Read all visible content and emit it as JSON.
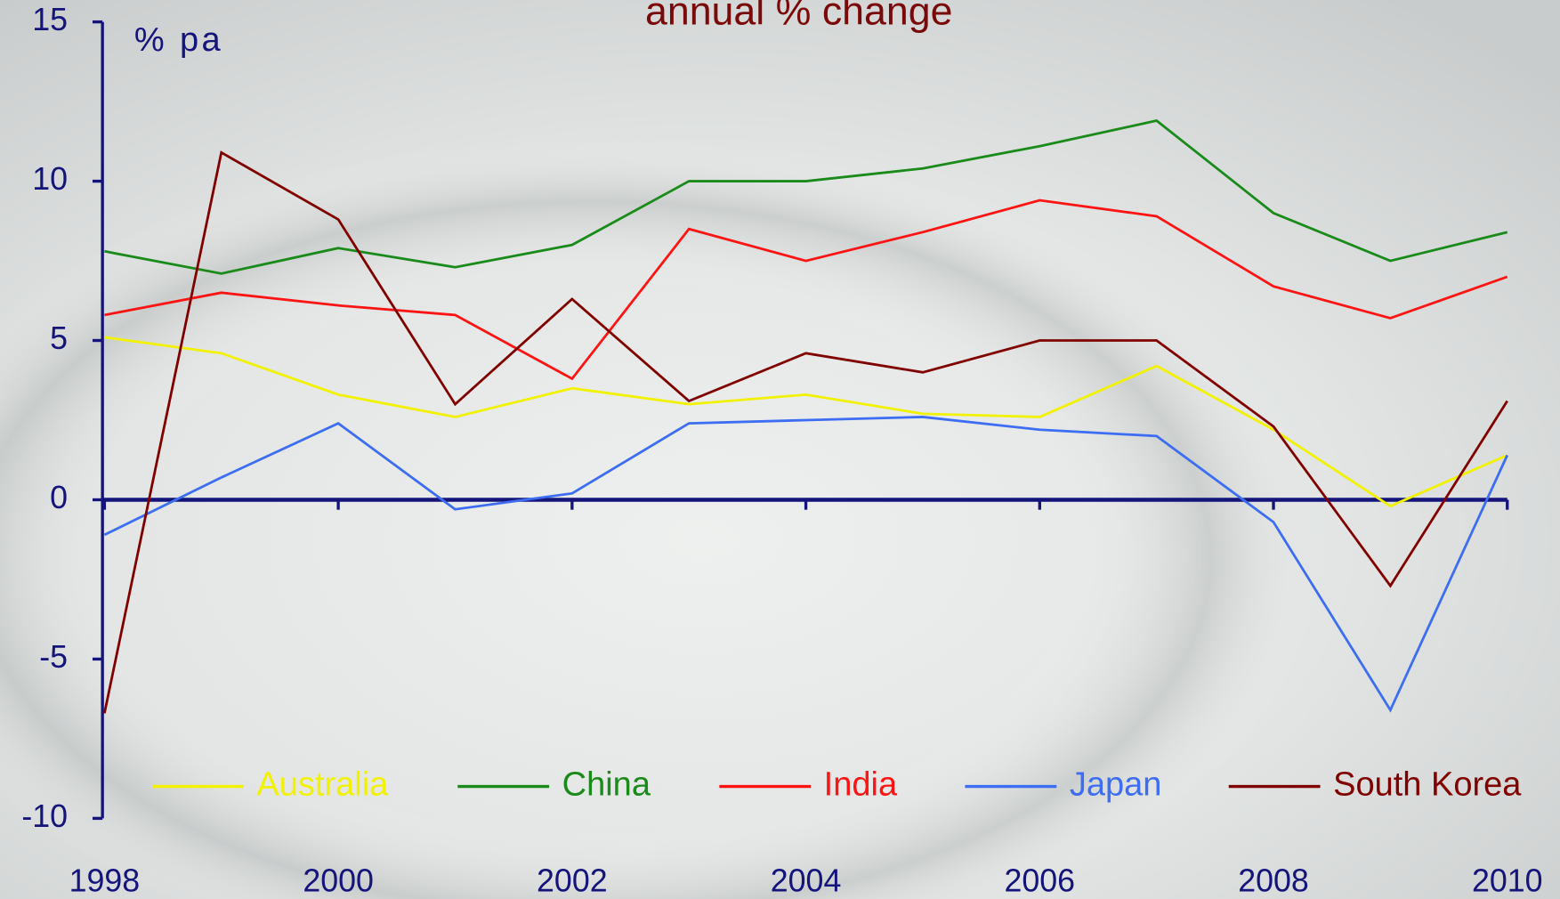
{
  "chart_data": {
    "type": "line",
    "title": "annual % change",
    "y_axis_label": "% pa",
    "x": [
      1998,
      1999,
      2000,
      2001,
      2002,
      2003,
      2004,
      2005,
      2006,
      2007,
      2008,
      2009,
      2010
    ],
    "series": [
      {
        "name": "Australia",
        "color": "#f2f200",
        "values": [
          5.1,
          4.6,
          3.3,
          2.6,
          3.5,
          3.0,
          3.3,
          2.7,
          2.6,
          4.2,
          2.2,
          -0.2,
          1.4
        ]
      },
      {
        "name": "China",
        "color": "#1a8a1a",
        "values": [
          7.8,
          7.1,
          7.9,
          7.3,
          8.0,
          10.0,
          10.0,
          10.4,
          11.1,
          11.9,
          9.0,
          7.5,
          8.4
        ]
      },
      {
        "name": "India",
        "color": "#ff1414",
        "values": [
          5.8,
          6.5,
          6.1,
          5.8,
          3.8,
          8.5,
          7.5,
          8.4,
          9.4,
          8.9,
          6.7,
          5.7,
          7.0
        ]
      },
      {
        "name": "Japan",
        "color": "#3d6df2",
        "values": [
          -1.1,
          0.7,
          2.4,
          -0.3,
          0.2,
          2.4,
          2.5,
          2.6,
          2.2,
          2.0,
          -0.7,
          -6.6,
          1.4
        ]
      },
      {
        "name": "South Korea",
        "color": "#800000",
        "values": [
          -6.7,
          10.9,
          8.8,
          3.0,
          6.3,
          3.1,
          4.6,
          4.0,
          5.0,
          5.0,
          2.3,
          -2.7,
          3.1
        ]
      }
    ],
    "xlim": [
      1998,
      2010
    ],
    "xticks": [
      1998,
      2000,
      2002,
      2004,
      2006,
      2008,
      2010
    ],
    "ylim": [
      -10,
      15
    ],
    "yticks": [
      -10,
      -5,
      0,
      5,
      10,
      15
    ],
    "grid": false,
    "legend": "bottom"
  }
}
